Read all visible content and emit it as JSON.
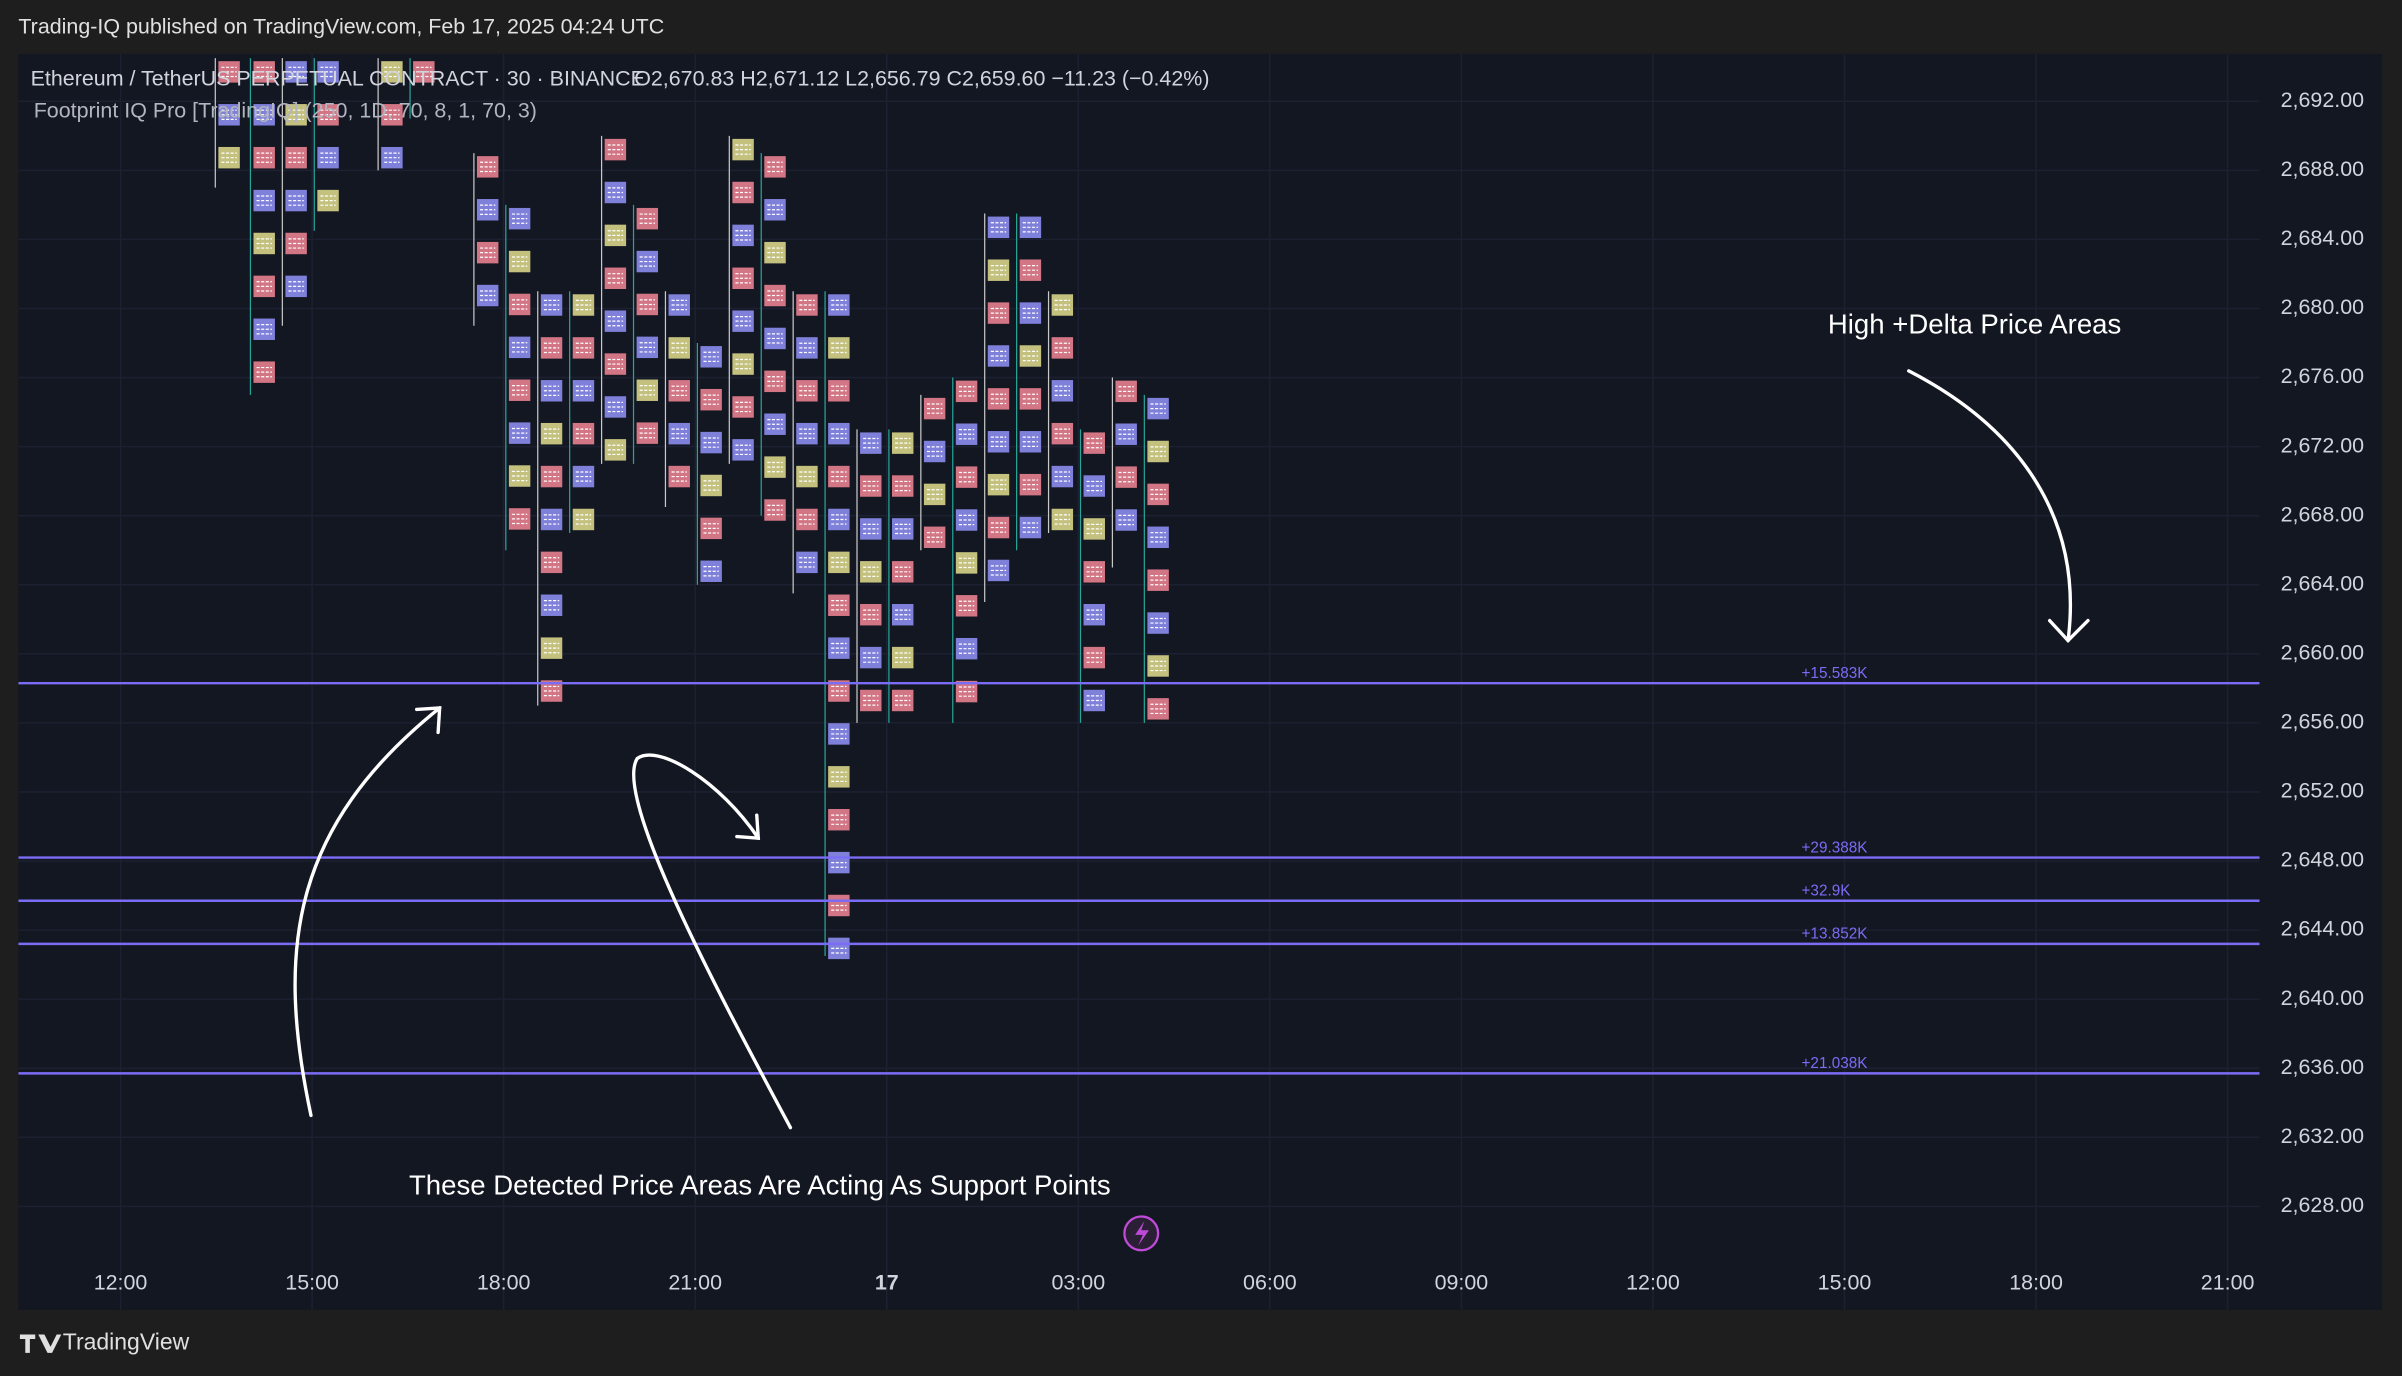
{
  "header": {
    "publisher": "Trading-IQ published on TradingView.com, Feb 17, 2025 04:24 UTC",
    "symbol": "Ethereum / TetherUS PERPETUAL CONTRACT · 30 · BINANCE",
    "ohlc": "O2,670.83  H2,671.12  L2,656.79  C2,659.60  −11.23 (−0.42%)",
    "indicator": "Footprint IQ Pro [TradingIQ] (250, 1D, 70, 8, 1, 70, 3)"
  },
  "chart_data": {
    "type": "footprint",
    "annotations": [
      "High +Delta Price Areas",
      "These Detected Price Areas Are Acting As Support Points"
    ],
    "x": [
      1.7,
      2.25,
      2.75,
      3.25,
      4.25,
      4.75,
      5.75,
      6.25,
      6.75,
      7.25,
      7.75,
      8.25,
      8.75,
      9.25,
      9.75,
      10.25,
      10.75,
      11.25,
      11.75,
      12.25,
      12.75,
      13.25,
      13.75,
      14.25,
      14.75,
      15.25,
      15.75,
      16.25
    ],
    "high": [
      2694.5,
      2694.5,
      2694.5,
      2694.5,
      2694.5,
      2694.5,
      2689,
      2686,
      2681,
      2681,
      2690,
      2686,
      2681,
      2678,
      2690,
      2689,
      2681,
      2681,
      2673,
      2673,
      2675,
      2676,
      2685.5,
      2685.5,
      2681,
      2673,
      2676,
      2675
    ],
    "low": [
      2687,
      2675,
      2679,
      2684.5,
      2688,
      2691,
      2679,
      2666,
      2657,
      2667,
      2671,
      2671,
      2668.5,
      2664,
      2671,
      2668,
      2663.5,
      2642.5,
      2656,
      2656,
      2666,
      2656,
      2663,
      2666,
      2667,
      2656,
      2665,
      2656
    ],
    "levels": [
      {
        "value": 2658.3,
        "label": "+15.583K"
      },
      {
        "value": 2648.2,
        "label": "+29.388K"
      },
      {
        "value": 2645.7,
        "label": "+32.9K"
      },
      {
        "value": 2643.2,
        "label": "+13.852K"
      },
      {
        "value": 2635.7,
        "label": "+21.038K"
      }
    ],
    "level_color": "#7b6cf6",
    "xlim": [
      -1.6,
      33.5
    ],
    "xticks": [
      {
        "value": 0,
        "label": "12:00"
      },
      {
        "value": 3,
        "label": "15:00"
      },
      {
        "value": 6,
        "label": "18:00"
      },
      {
        "value": 9,
        "label": "21:00"
      },
      {
        "value": 12,
        "label": "17"
      },
      {
        "value": 15,
        "label": "03:00"
      },
      {
        "value": 18,
        "label": "06:00"
      },
      {
        "value": 21,
        "label": "09:00"
      },
      {
        "value": 24,
        "label": "12:00"
      },
      {
        "value": 27,
        "label": "15:00"
      },
      {
        "value": 30,
        "label": "18:00"
      },
      {
        "value": 33,
        "label": "21:00"
      }
    ],
    "ylim": [
      2622,
      2694.75
    ],
    "yticks": [
      {
        "value": 2628,
        "label": "2,628.00"
      },
      {
        "value": 2632,
        "label": "2,632.00"
      },
      {
        "value": 2636,
        "label": "2,636.00"
      },
      {
        "value": 2640,
        "label": "2,640.00"
      },
      {
        "value": 2644,
        "label": "2,644.00"
      },
      {
        "value": 2648,
        "label": "2,648.00"
      },
      {
        "value": 2652,
        "label": "2,652.00"
      },
      {
        "value": 2656,
        "label": "2,656.00"
      },
      {
        "value": 2660,
        "label": "2,660.00"
      },
      {
        "value": 2664,
        "label": "2,664.00"
      },
      {
        "value": 2668,
        "label": "2,668.00"
      },
      {
        "value": 2672,
        "label": "2,672.00"
      },
      {
        "value": 2676,
        "label": "2,676.00"
      },
      {
        "value": 2680,
        "label": "2,680.00"
      },
      {
        "value": 2684,
        "label": "2,684.00"
      },
      {
        "value": 2688,
        "label": "2,688.00"
      },
      {
        "value": 2692,
        "label": "2,692.00"
      }
    ],
    "grid": true
  },
  "footer": {
    "brand": "TradingView"
  }
}
